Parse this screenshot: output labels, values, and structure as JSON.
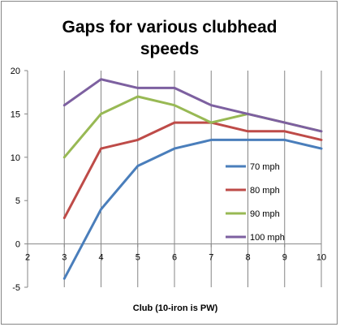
{
  "chart_data": {
    "type": "line",
    "title_line1": "Gaps for various clubhead",
    "title_line2": "speeds",
    "xlabel": "Club (10-iron is PW)",
    "ylabel": "",
    "xlim": [
      2,
      10
    ],
    "ylim": [
      -5,
      20
    ],
    "x_ticks": [
      2,
      3,
      4,
      5,
      6,
      7,
      8,
      9,
      10
    ],
    "y_ticks": [
      -5,
      0,
      5,
      10,
      15,
      20
    ],
    "x": [
      3,
      4,
      5,
      6,
      7,
      8,
      9,
      10
    ],
    "grid": "vertical",
    "legend_position": "right",
    "series": [
      {
        "name": "70 mph",
        "color": "#4a7ebb",
        "values": [
          -4,
          4,
          9,
          11,
          12,
          12,
          12,
          11
        ]
      },
      {
        "name": "80 mph",
        "color": "#be4b48",
        "values": [
          3,
          11,
          12,
          14,
          14,
          13,
          13,
          12
        ]
      },
      {
        "name": "90 mph",
        "color": "#98b954",
        "values": [
          10,
          15,
          17,
          16,
          14,
          15,
          14,
          13
        ]
      },
      {
        "name": "100 mph",
        "color": "#7d60a0",
        "values": [
          16,
          19,
          18,
          18,
          16,
          15,
          14,
          13
        ]
      }
    ]
  }
}
